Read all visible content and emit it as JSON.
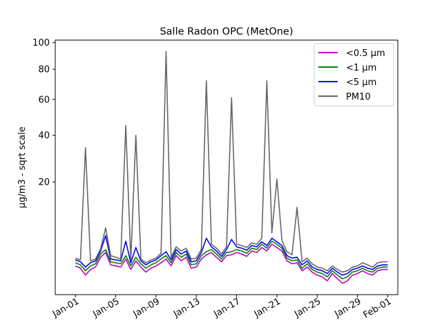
{
  "chart_data": {
    "type": "line",
    "title": "Salle Radon OPC (MetOne)",
    "xlabel": "",
    "ylabel": "µg/m3 - sqrt scale",
    "y_scale": "sqrt",
    "ylim": [
      0,
      102
    ],
    "xlim": [
      "2023-12-30",
      "2024-02-02"
    ],
    "y_ticks": [
      20,
      40,
      60,
      80,
      100
    ],
    "x_ticks": [
      {
        "date": "2024-01-01",
        "label": "Jan-01"
      },
      {
        "date": "2024-01-05",
        "label": "Jan-05"
      },
      {
        "date": "2024-01-09",
        "label": "Jan-09"
      },
      {
        "date": "2024-01-13",
        "label": "Jan-13"
      },
      {
        "date": "2024-01-17",
        "label": "Jan-17"
      },
      {
        "date": "2024-01-21",
        "label": "Jan-21"
      },
      {
        "date": "2024-01-25",
        "label": "Jan-25"
      },
      {
        "date": "2024-01-29",
        "label": "Jan-29"
      },
      {
        "date": "2024-02-01",
        "label": "Feb-01"
      }
    ],
    "legend_position": "top-right",
    "grid": false,
    "colors": {
      "pm05": "#bf00bf",
      "pm1": "#008000",
      "pm5": "#0000ff",
      "pm10": "#666666"
    },
    "x": [
      "2024-01-01T00:00",
      "2024-01-01T12:00",
      "2024-01-02T00:00",
      "2024-01-02T12:00",
      "2024-01-03T00:00",
      "2024-01-03T12:00",
      "2024-01-04T00:00",
      "2024-01-04T12:00",
      "2024-01-05T00:00",
      "2024-01-05T12:00",
      "2024-01-06T00:00",
      "2024-01-06T12:00",
      "2024-01-07T00:00",
      "2024-01-07T12:00",
      "2024-01-08T00:00",
      "2024-01-08T12:00",
      "2024-01-09T00:00",
      "2024-01-09T12:00",
      "2024-01-10T00:00",
      "2024-01-10T12:00",
      "2024-01-11T00:00",
      "2024-01-11T12:00",
      "2024-01-12T00:00",
      "2024-01-12T12:00",
      "2024-01-13T00:00",
      "2024-01-13T12:00",
      "2024-01-14T00:00",
      "2024-01-14T12:00",
      "2024-01-15T00:00",
      "2024-01-15T12:00",
      "2024-01-16T00:00",
      "2024-01-16T12:00",
      "2024-01-17T00:00",
      "2024-01-17T12:00",
      "2024-01-18T00:00",
      "2024-01-18T12:00",
      "2024-01-19T00:00",
      "2024-01-19T12:00",
      "2024-01-20T00:00",
      "2024-01-20T12:00",
      "2024-01-21T00:00",
      "2024-01-21T12:00",
      "2024-01-22T00:00",
      "2024-01-22T12:00",
      "2024-01-23T00:00",
      "2024-01-23T12:00",
      "2024-01-24T00:00",
      "2024-01-24T12:00",
      "2024-01-25T00:00",
      "2024-01-25T12:00",
      "2024-01-26T00:00",
      "2024-01-26T12:00",
      "2024-01-27T00:00",
      "2024-01-27T12:00",
      "2024-01-28T00:00",
      "2024-01-28T12:00",
      "2024-01-29T00:00",
      "2024-01-29T12:00",
      "2024-01-30T00:00",
      "2024-01-30T12:00",
      "2024-01-31T00:00",
      "2024-01-31T12:00",
      "2024-02-01T00:00"
    ],
    "series": [
      {
        "name": "<0.5 µm",
        "key": "pm05",
        "values": [
          1.3,
          1.1,
          0.6,
          1.0,
          1.2,
          2.2,
          2.8,
          1.4,
          1.3,
          1.2,
          2.0,
          1.0,
          1.8,
          1.2,
          0.8,
          1.1,
          1.3,
          1.6,
          2.0,
          1.3,
          2.4,
          1.8,
          2.2,
          1.1,
          1.2,
          2.0,
          2.5,
          2.8,
          2.2,
          1.7,
          2.4,
          2.5,
          2.8,
          2.6,
          2.3,
          3.0,
          2.8,
          3.5,
          3.0,
          4.0,
          3.5,
          3.0,
          1.8,
          1.5,
          1.6,
          0.9,
          1.2,
          0.8,
          0.6,
          0.5,
          0.3,
          0.7,
          0.4,
          0.2,
          0.3,
          0.6,
          0.7,
          0.9,
          0.7,
          0.6,
          0.9,
          1.0,
          1.0
        ]
      },
      {
        "name": "<1 µm",
        "key": "pm1",
        "values": [
          1.6,
          1.4,
          0.9,
          1.3,
          1.5,
          2.6,
          3.2,
          1.7,
          1.6,
          1.5,
          2.4,
          1.3,
          2.2,
          1.5,
          1.1,
          1.4,
          1.6,
          2.0,
          2.4,
          1.6,
          2.8,
          2.2,
          2.6,
          1.4,
          1.5,
          2.4,
          2.9,
          3.2,
          2.6,
          2.0,
          2.8,
          2.9,
          3.2,
          3.0,
          2.7,
          3.4,
          3.2,
          4.0,
          3.4,
          4.5,
          4.0,
          3.4,
          2.1,
          1.8,
          1.9,
          1.1,
          1.5,
          1.0,
          0.8,
          0.7,
          0.5,
          0.9,
          0.6,
          0.4,
          0.5,
          0.8,
          0.9,
          1.1,
          0.9,
          0.8,
          1.1,
          1.2,
          1.2
        ]
      },
      {
        "name": "<5 µm",
        "key": "pm5",
        "values": [
          1.9,
          1.7,
          1.2,
          1.6,
          1.8,
          3.0,
          5.5,
          2.0,
          1.9,
          1.8,
          4.5,
          1.6,
          3.5,
          1.8,
          1.4,
          1.7,
          1.9,
          2.4,
          2.9,
          1.9,
          3.2,
          2.6,
          3.0,
          1.7,
          1.8,
          2.8,
          5.0,
          3.6,
          3.0,
          2.3,
          3.2,
          4.8,
          3.6,
          3.4,
          3.1,
          3.8,
          3.6,
          4.4,
          3.8,
          5.0,
          4.4,
          3.8,
          2.4,
          2.1,
          2.2,
          1.4,
          1.8,
          1.2,
          1.0,
          0.9,
          0.7,
          1.1,
          0.8,
          0.6,
          0.7,
          1.0,
          1.1,
          1.3,
          1.1,
          1.0,
          1.3,
          1.4,
          1.4
        ]
      },
      {
        "name": "PM10",
        "key": "pm10",
        "values": [
          2.1,
          1.9,
          34,
          1.8,
          2.0,
          3.3,
          7.0,
          2.4,
          2.2,
          2.0,
          45,
          1.9,
          40,
          2.0,
          1.6,
          1.9,
          2.1,
          2.7,
          93,
          2.2,
          3.6,
          3.0,
          3.4,
          2.0,
          2.1,
          3.2,
          72,
          4.0,
          3.4,
          2.6,
          3.6,
          61,
          4.0,
          3.8,
          3.5,
          4.2,
          4.0,
          5.0,
          72,
          6.0,
          21,
          4.6,
          2.9,
          2.5,
          12,
          1.7,
          2.1,
          1.5,
          1.2,
          1.1,
          0.9,
          1.3,
          1.0,
          0.8,
          0.9,
          1.2,
          1.3,
          1.6,
          1.4,
          1.2,
          1.6,
          1.7,
          1.7
        ]
      }
    ]
  }
}
